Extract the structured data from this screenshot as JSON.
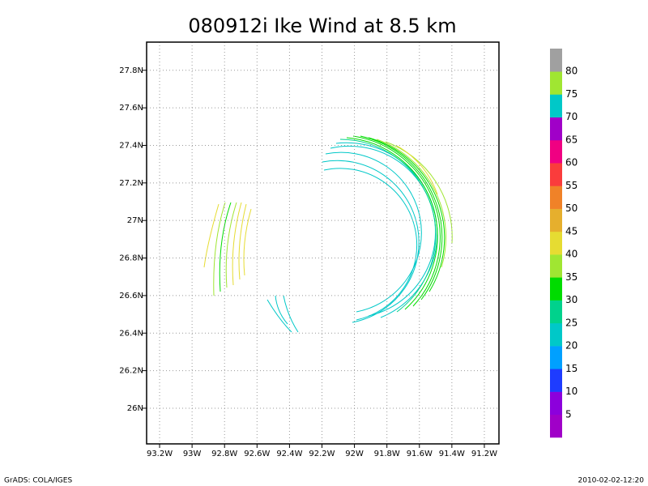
{
  "chart_data": {
    "type": "vector-map",
    "title": "080912i Ike Wind at 8.5 km",
    "xlim": [
      -93.28,
      -91.11
    ],
    "ylim": [
      25.81,
      27.95
    ],
    "xticks": [
      {
        "value": -93.2,
        "label": "93.2W"
      },
      {
        "value": -93.0,
        "label": "93W"
      },
      {
        "value": -92.8,
        "label": "92.8W"
      },
      {
        "value": -92.6,
        "label": "92.6W"
      },
      {
        "value": -92.4,
        "label": "92.4W"
      },
      {
        "value": -92.2,
        "label": "92.2W"
      },
      {
        "value": -92.0,
        "label": "92W"
      },
      {
        "value": -91.8,
        "label": "91.8W"
      },
      {
        "value": -91.6,
        "label": "91.6W"
      },
      {
        "value": -91.4,
        "label": "91.4W"
      },
      {
        "value": -91.2,
        "label": "91.2W"
      }
    ],
    "yticks": [
      {
        "value": 26.0,
        "label": "26N"
      },
      {
        "value": 26.2,
        "label": "26.2N"
      },
      {
        "value": 26.4,
        "label": "26.4N"
      },
      {
        "value": 26.6,
        "label": "26.6N"
      },
      {
        "value": 26.8,
        "label": "26.8N"
      },
      {
        "value": 27.0,
        "label": "27N"
      },
      {
        "value": 27.2,
        "label": "27.2N"
      },
      {
        "value": 27.4,
        "label": "27.4N"
      },
      {
        "value": 27.6,
        "label": "27.6N"
      },
      {
        "value": 27.8,
        "label": "27.8N"
      }
    ],
    "grid": true,
    "colorbar": {
      "levels": [
        5,
        10,
        15,
        20,
        25,
        30,
        35,
        40,
        45,
        50,
        55,
        60,
        65,
        70,
        75,
        80
      ],
      "colors": [
        "#a000c8",
        "#8c00dc",
        "#1e3cff",
        "#00a0ff",
        "#00c8c8",
        "#00d28c",
        "#00dc00",
        "#a0e632",
        "#e6dc32",
        "#e6af2d",
        "#f08228",
        "#fa3c3c",
        "#f00082",
        "#a000c8",
        "#00c8c8",
        "#a0e632",
        "#a0a0a0"
      ]
    },
    "footer_left": "GrADS: COLA/IGES",
    "footer_right": "2010-02-02-12:20"
  }
}
